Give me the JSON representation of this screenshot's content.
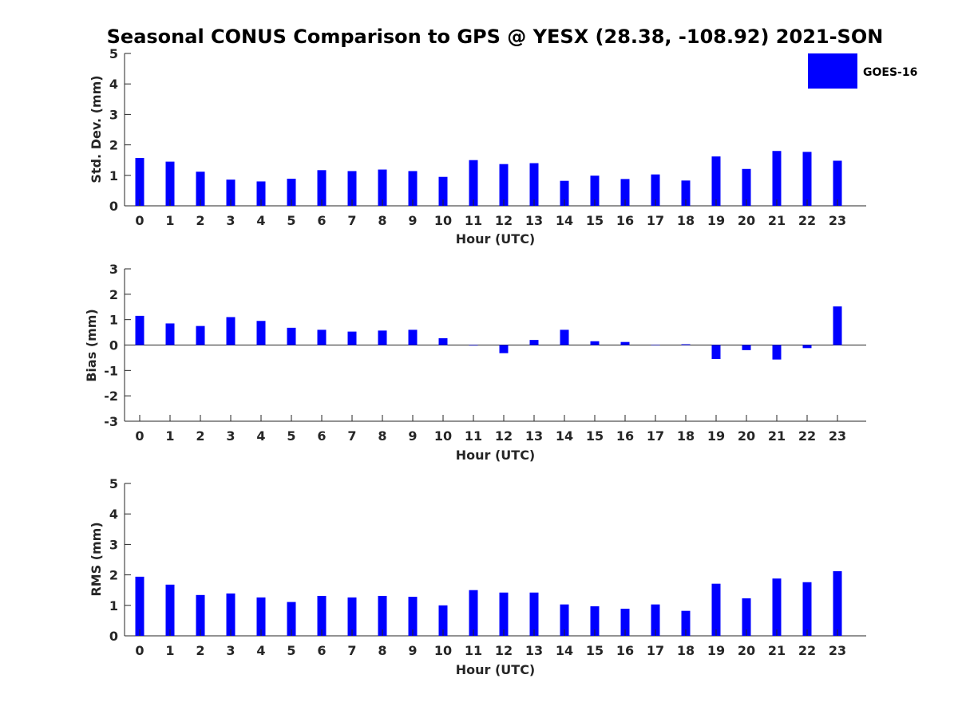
{
  "title": "Seasonal CONUS Comparison to GPS @ YESX (28.38, -108.92) 2021-SON",
  "legend": {
    "label": "GOES-16",
    "color": "#0000ff"
  },
  "chart_data": [
    {
      "type": "bar",
      "name": "std",
      "xlabel": "Hour (UTC)",
      "ylabel": "Std. Dev. (mm)",
      "ylim": [
        0,
        5
      ],
      "yticks": [
        0,
        1,
        2,
        3,
        4,
        5
      ],
      "categories": [
        "0",
        "1",
        "2",
        "3",
        "4",
        "5",
        "6",
        "7",
        "8",
        "9",
        "10",
        "11",
        "12",
        "13",
        "14",
        "15",
        "16",
        "17",
        "18",
        "19",
        "20",
        "21",
        "22",
        "23"
      ],
      "series": [
        {
          "name": "GOES-16",
          "values": [
            1.57,
            1.45,
            1.12,
            0.86,
            0.8,
            0.89,
            1.17,
            1.14,
            1.19,
            1.14,
            0.95,
            1.5,
            1.37,
            1.4,
            0.82,
            0.99,
            0.88,
            1.03,
            0.83,
            1.62,
            1.21,
            1.8,
            1.77,
            1.48
          ]
        }
      ]
    },
    {
      "type": "bar",
      "name": "bias",
      "xlabel": "Hour (UTC)",
      "ylabel": "Bias (mm)",
      "ylim": [
        -3,
        3
      ],
      "yticks": [
        -3,
        -2,
        -1,
        0,
        1,
        2,
        3
      ],
      "categories": [
        "0",
        "1",
        "2",
        "3",
        "4",
        "5",
        "6",
        "7",
        "8",
        "9",
        "10",
        "11",
        "12",
        "13",
        "14",
        "15",
        "16",
        "17",
        "18",
        "19",
        "20",
        "21",
        "22",
        "23"
      ],
      "series": [
        {
          "name": "GOES-16",
          "values": [
            1.15,
            0.85,
            0.75,
            1.1,
            0.95,
            0.68,
            0.6,
            0.53,
            0.57,
            0.6,
            0.27,
            -0.02,
            -0.32,
            0.2,
            0.6,
            0.15,
            0.12,
            -0.01,
            0.03,
            -0.55,
            -0.2,
            -0.57,
            -0.12,
            1.52
          ]
        }
      ]
    },
    {
      "type": "bar",
      "name": "rms",
      "xlabel": "Hour (UTC)",
      "ylabel": "RMS (mm)",
      "ylim": [
        0,
        5
      ],
      "yticks": [
        0,
        1,
        2,
        3,
        4,
        5
      ],
      "categories": [
        "0",
        "1",
        "2",
        "3",
        "4",
        "5",
        "6",
        "7",
        "8",
        "9",
        "10",
        "11",
        "12",
        "13",
        "14",
        "15",
        "16",
        "17",
        "18",
        "19",
        "20",
        "21",
        "22",
        "23"
      ],
      "series": [
        {
          "name": "GOES-16",
          "values": [
            1.94,
            1.68,
            1.34,
            1.39,
            1.26,
            1.11,
            1.31,
            1.26,
            1.31,
            1.28,
            1.0,
            1.5,
            1.42,
            1.42,
            1.03,
            0.97,
            0.89,
            1.03,
            0.82,
            1.71,
            1.23,
            1.88,
            1.76,
            2.12
          ]
        }
      ]
    }
  ]
}
